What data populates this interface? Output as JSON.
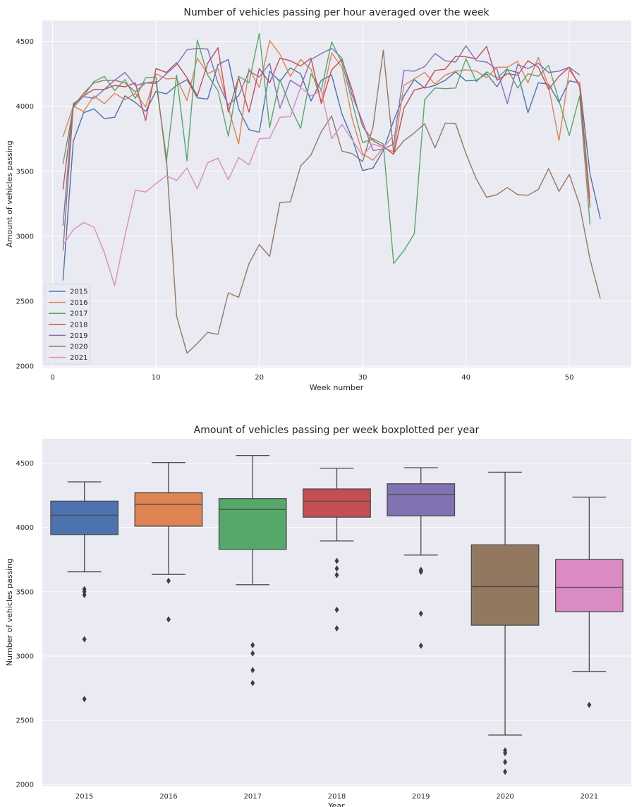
{
  "chart_data": [
    {
      "type": "line",
      "title": "Number of vehicles passing  per hour averaged over the week",
      "xlabel": "Week number",
      "ylabel": "Amount of vehicles passing",
      "xlim": [
        -1,
        56
      ],
      "ylim": [
        1990,
        4660
      ],
      "xticks": [
        0,
        10,
        20,
        30,
        40,
        50
      ],
      "yticks": [
        2000,
        2500,
        3000,
        3500,
        4000,
        4500
      ],
      "grid": true,
      "legend": "lower-left",
      "series": [
        {
          "name": "2015",
          "color": "#4c72b0",
          "x": [
            1,
            2,
            3,
            4,
            5,
            6,
            7,
            8,
            9,
            10,
            11,
            12,
            13,
            14,
            15,
            16,
            17,
            18,
            19,
            20,
            21,
            22,
            23,
            24,
            25,
            26,
            27,
            28,
            29,
            30,
            31,
            32,
            33,
            34,
            35,
            36,
            37,
            38,
            39,
            40,
            41,
            42,
            43,
            44,
            45,
            46,
            47,
            48,
            49,
            50,
            51,
            52,
            53
          ],
          "values": [
            2660,
            3730,
            3950,
            3980,
            3905,
            3915,
            4080,
            4030,
            3960,
            4115,
            4095,
            4160,
            4205,
            4065,
            4055,
            4320,
            4360,
            3980,
            3820,
            3800,
            4270,
            4190,
            4295,
            4250,
            4040,
            4200,
            4240,
            3940,
            3750,
            3505,
            3525,
            3660,
            3890,
            4080,
            4205,
            4140,
            4160,
            4200,
            4265,
            4195,
            4200,
            4250,
            4150,
            4280,
            4260,
            3950,
            4180,
            4170,
            4030,
            4195,
            4180,
            3480,
            3135
          ]
        },
        {
          "name": "2016",
          "color": "#dd8452",
          "x": [
            1,
            2,
            3,
            4,
            5,
            6,
            7,
            8,
            9,
            10,
            11,
            12,
            13,
            14,
            15,
            16,
            17,
            18,
            19,
            20,
            21,
            22,
            23,
            24,
            25,
            26,
            27,
            28,
            29,
            30,
            31,
            32,
            33,
            34,
            35,
            36,
            37,
            38,
            39,
            40,
            41,
            42,
            43,
            44,
            45,
            46,
            47,
            48,
            49,
            50,
            51,
            52
          ],
          "values": [
            3765,
            4000,
            3960,
            4080,
            4020,
            4100,
            4050,
            4100,
            3995,
            4250,
            4210,
            4215,
            4045,
            4370,
            4250,
            4290,
            3990,
            3710,
            4290,
            4145,
            4505,
            4400,
            4230,
            4360,
            4285,
            4035,
            4410,
            4300,
            3900,
            3635,
            3585,
            3680,
            3650,
            4160,
            4210,
            4260,
            4170,
            4240,
            4270,
            4280,
            4270,
            4220,
            4300,
            4300,
            4345,
            4180,
            4375,
            4150,
            3735,
            4280,
            4170,
            3290
          ]
        },
        {
          "name": "2017",
          "color": "#55a868",
          "x": [
            1,
            2,
            3,
            4,
            5,
            6,
            7,
            8,
            9,
            10,
            11,
            12,
            13,
            14,
            15,
            16,
            17,
            18,
            19,
            20,
            21,
            22,
            23,
            24,
            25,
            26,
            27,
            28,
            29,
            30,
            31,
            32,
            33,
            34,
            35,
            36,
            37,
            38,
            39,
            40,
            41,
            42,
            43,
            44,
            45,
            46,
            47,
            48,
            49,
            50,
            51,
            52
          ],
          "values": [
            3555,
            3990,
            4080,
            4190,
            4230,
            4120,
            4205,
            4060,
            4220,
            4225,
            3570,
            4240,
            3580,
            4510,
            4240,
            4120,
            3770,
            4230,
            4180,
            4560,
            3835,
            4205,
            3995,
            3830,
            4250,
            4125,
            4495,
            4335,
            4030,
            3720,
            3750,
            3710,
            2790,
            2890,
            3020,
            4050,
            4140,
            4135,
            4140,
            4365,
            4190,
            4265,
            4215,
            4290,
            4140,
            4250,
            4230,
            4315,
            4040,
            3775,
            4080,
            3090
          ]
        },
        {
          "name": "2018",
          "color": "#c44e52",
          "x": [
            1,
            2,
            3,
            4,
            5,
            6,
            7,
            8,
            9,
            10,
            11,
            12,
            13,
            14,
            15,
            16,
            17,
            18,
            19,
            20,
            21,
            22,
            23,
            24,
            25,
            26,
            27,
            28,
            29,
            30,
            31,
            32,
            33,
            34,
            35,
            36,
            37,
            38,
            39,
            40,
            41,
            42,
            43,
            44,
            45,
            46,
            47,
            48,
            49,
            50,
            51,
            52
          ],
          "values": [
            3360,
            4010,
            4080,
            4130,
            4130,
            4160,
            4150,
            4180,
            3890,
            4290,
            4260,
            4335,
            4220,
            4080,
            4330,
            4450,
            3955,
            4220,
            3955,
            4290,
            4180,
            4370,
            4350,
            4310,
            4370,
            4020,
            4280,
            4360,
            4120,
            3845,
            3735,
            3690,
            3630,
            3985,
            4125,
            4145,
            4275,
            4285,
            4385,
            4380,
            4365,
            4460,
            4200,
            4250,
            4240,
            4350,
            4300,
            4130,
            4230,
            4300,
            4150,
            3220
          ]
        },
        {
          "name": "2019",
          "color": "#8172b3",
          "x": [
            1,
            2,
            3,
            4,
            5,
            6,
            7,
            8,
            9,
            10,
            11,
            12,
            13,
            14,
            15,
            16,
            17,
            18,
            19,
            20,
            21,
            22,
            23,
            24,
            25,
            26,
            27,
            28,
            29,
            30,
            31,
            32,
            33,
            34,
            35,
            36,
            37,
            38,
            39,
            40,
            41,
            42,
            43,
            44,
            45,
            46,
            47,
            48,
            49,
            50,
            51
          ],
          "values": [
            3080,
            4020,
            4075,
            4060,
            4130,
            4200,
            4260,
            4160,
            4180,
            4175,
            4250,
            4320,
            4435,
            4445,
            4440,
            4180,
            4010,
            4080,
            4270,
            4225,
            4330,
            3985,
            4200,
            4150,
            4360,
            4405,
            4445,
            4370,
            4080,
            3880,
            3660,
            3670,
            3710,
            4275,
            4270,
            4305,
            4405,
            4350,
            4340,
            4465,
            4350,
            4340,
            4285,
            4020,
            4320,
            4290,
            4330,
            4260,
            4270,
            4300,
            4240
          ]
        },
        {
          "name": "2020",
          "color": "#937860",
          "x": [
            1,
            2,
            3,
            4,
            5,
            6,
            7,
            8,
            9,
            10,
            11,
            12,
            13,
            14,
            15,
            16,
            17,
            18,
            19,
            20,
            21,
            22,
            23,
            24,
            25,
            26,
            27,
            28,
            29,
            30,
            31,
            32,
            33,
            34,
            35,
            36,
            37,
            38,
            39,
            40,
            41,
            42,
            43,
            44,
            45,
            46,
            47,
            48,
            49,
            50,
            51,
            52,
            53
          ],
          "values": [
            2890,
            4000,
            4100,
            4180,
            4200,
            4200,
            4180,
            4110,
            4180,
            4190,
            3610,
            2385,
            2100,
            2175,
            2260,
            2245,
            2565,
            2530,
            2790,
            2935,
            2845,
            3260,
            3265,
            3540,
            3625,
            3805,
            3925,
            3655,
            3635,
            3575,
            3840,
            4430,
            3640,
            3735,
            3795,
            3865,
            3680,
            3870,
            3865,
            3635,
            3440,
            3300,
            3320,
            3375,
            3320,
            3315,
            3360,
            3520,
            3345,
            3475,
            3240,
            2825,
            2520
          ]
        },
        {
          "name": "2021",
          "color": "#da8bc3",
          "x": [
            1,
            2,
            3,
            4,
            5,
            6,
            7,
            8,
            9,
            10,
            11,
            12,
            13,
            14,
            15,
            16,
            17,
            18,
            19,
            20,
            21,
            22,
            23,
            24,
            25,
            26,
            27,
            28,
            29,
            30,
            31,
            32,
            33
          ],
          "values": [
            2930,
            3050,
            3105,
            3070,
            2875,
            2620,
            3005,
            3355,
            3340,
            3405,
            3465,
            3430,
            3525,
            3365,
            3565,
            3600,
            3435,
            3605,
            3550,
            3750,
            3755,
            3915,
            3920,
            4145,
            4080,
            4120,
            3750,
            3860,
            3740,
            3620,
            3710,
            3680,
            3780
          ]
        }
      ]
    },
    {
      "type": "box",
      "title": "Amount of vehicles passing per week boxplotted per year",
      "xlabel": "Year",
      "ylabel": "Number of vehicles passing",
      "ylim": [
        1990,
        4690
      ],
      "yticks": [
        2000,
        2500,
        3000,
        3500,
        4000,
        4500
      ],
      "grid": true,
      "categories": [
        "2015",
        "2016",
        "2017",
        "2018",
        "2019",
        "2020",
        "2021"
      ],
      "colors": [
        "#4c72b0",
        "#dd8452",
        "#55a868",
        "#c44e52",
        "#8172b3",
        "#937860",
        "#da8bc3"
      ],
      "boxes": [
        {
          "whislo": 3655,
          "q1": 3945,
          "med": 4095,
          "q3": 4205,
          "whishi": 4355,
          "fliers": [
            3520,
            3500,
            3475,
            3130,
            2665
          ]
        },
        {
          "whislo": 3635,
          "q1": 4010,
          "med": 4180,
          "q3": 4270,
          "whishi": 4505,
          "fliers": [
            3585,
            3285
          ]
        },
        {
          "whislo": 3555,
          "q1": 3830,
          "med": 4140,
          "q3": 4225,
          "whishi": 4560,
          "fliers": [
            3085,
            3020,
            2890,
            2790
          ]
        },
        {
          "whislo": 3895,
          "q1": 4080,
          "med": 4205,
          "q3": 4300,
          "whishi": 4460,
          "fliers": [
            3740,
            3680,
            3630,
            3360,
            3215
          ]
        },
        {
          "whislo": 3785,
          "q1": 4090,
          "med": 4255,
          "q3": 4340,
          "whishi": 4465,
          "fliers": [
            3670,
            3655,
            3330,
            3080
          ]
        },
        {
          "whislo": 2385,
          "q1": 3240,
          "med": 3540,
          "q3": 3865,
          "whishi": 4430,
          "fliers": [
            2265,
            2245,
            2175,
            2100
          ]
        },
        {
          "whislo": 2880,
          "q1": 3345,
          "med": 3535,
          "q3": 3750,
          "whishi": 4235,
          "fliers": [
            2620
          ]
        }
      ]
    }
  ]
}
